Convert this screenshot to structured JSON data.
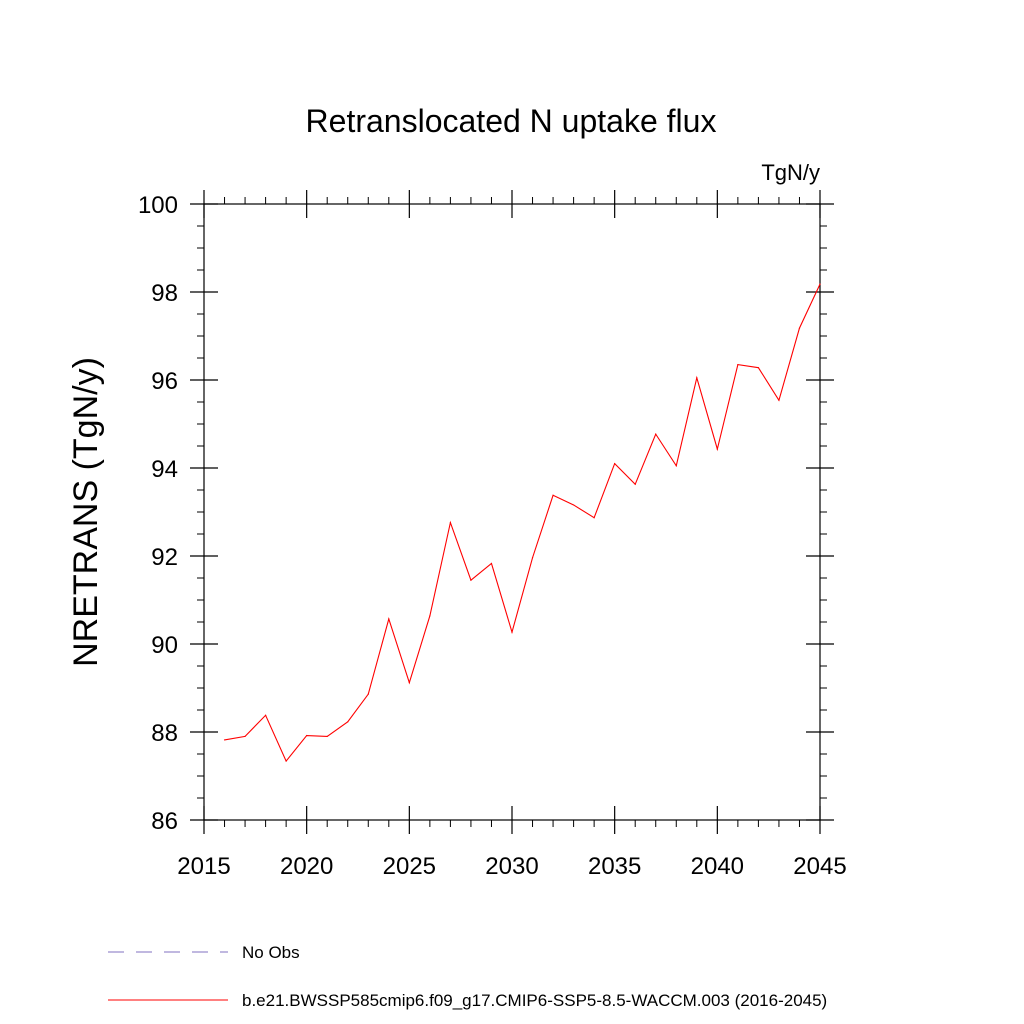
{
  "chart_data": {
    "type": "line",
    "title": "Retranslocated N uptake flux",
    "units": "TgN/y",
    "ylabel": "NRETRANS  (TgN/y)",
    "xlabel": "",
    "xlim": [
      2015,
      2045
    ],
    "ylim": [
      86,
      100
    ],
    "xticks": [
      2015,
      2020,
      2025,
      2030,
      2035,
      2040,
      2045
    ],
    "yticks": [
      86,
      88,
      90,
      92,
      94,
      96,
      98,
      100
    ],
    "grid": false,
    "legend_position": "bottom",
    "series": [
      {
        "name": "b.e21.BWSSP585cmip6.f09_g17.CMIP6-SSP5-8.5-WACCM.003 (2016-2045)",
        "color": "#ff0000",
        "style": "solid",
        "x": [
          2016,
          2017,
          2018,
          2019,
          2020,
          2021,
          2022,
          2023,
          2024,
          2025,
          2026,
          2027,
          2028,
          2029,
          2030,
          2031,
          2032,
          2033,
          2034,
          2035,
          2036,
          2037,
          2038,
          2039,
          2040,
          2041,
          2042,
          2043,
          2044,
          2045
        ],
        "y": [
          87.82,
          87.9,
          88.38,
          87.34,
          87.92,
          87.9,
          88.23,
          88.86,
          90.57,
          89.12,
          90.64,
          92.76,
          91.45,
          91.83,
          90.27,
          91.96,
          93.38,
          93.16,
          92.87,
          94.1,
          93.63,
          94.77,
          94.05,
          96.05,
          94.43,
          96.35,
          96.28,
          95.54,
          97.18,
          98.18
        ]
      }
    ],
    "legend_entries": [
      {
        "label": "No Obs",
        "color": "#8070c0",
        "style": "dashed"
      },
      {
        "label": "b.e21.BWSSP585cmip6.f09_g17.CMIP6-SSP5-8.5-WACCM.003 (2016-2045)",
        "color": "#ff0000",
        "style": "solid"
      }
    ]
  }
}
